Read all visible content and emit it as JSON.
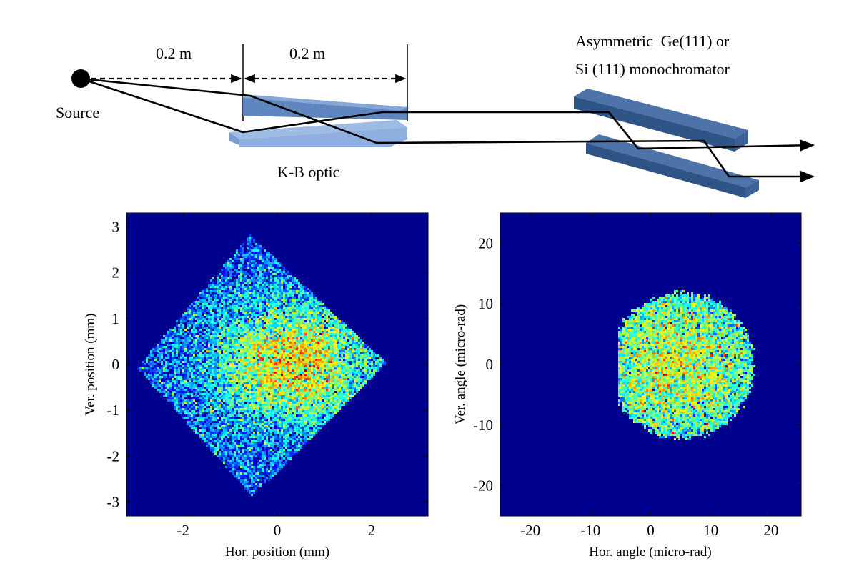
{
  "colors": {
    "background_dark_blue": "#00008f",
    "slab_top": "#6f95c9",
    "slab_front": "#a8c2e8",
    "mono_top": "#4a6fa3",
    "mono_front": "#2c4e7c",
    "beam": "#000000"
  },
  "diagram": {
    "source_label": "Source",
    "dist1_label": "0.2 m",
    "dist2_label": "0.2 m",
    "kb_label": "K-B optic",
    "mono_label_line1": "Asymmetric  Ge(111) or",
    "mono_label_line2": "Si (111) monochromator"
  },
  "plots": [
    {
      "name": "position-plot",
      "xlabel": "Hor. position (mm)",
      "ylabel": "Ver. position (mm)",
      "xlim": [
        -3.2,
        3.2
      ],
      "ylim": [
        -3.3,
        3.3
      ],
      "xticks": [
        "-2",
        "0",
        "2"
      ],
      "yticks": [
        "3",
        "2",
        "1",
        "0",
        "-1",
        "-2",
        "-3"
      ],
      "shape": "diamond",
      "diamond_vertices": [
        [
          -3.0,
          -0.05
        ],
        [
          -0.6,
          2.85
        ],
        [
          2.3,
          0.05
        ],
        [
          -0.55,
          -2.85
        ]
      ],
      "peak_center": [
        0.3,
        0.05
      ],
      "peak_width": [
        1.6,
        1.3
      ]
    },
    {
      "name": "angle-plot",
      "xlabel": "Hor. angle (micro-rad)",
      "ylabel": "Ver. angle (micro-rad)",
      "xlim": [
        -25,
        25
      ],
      "ylim": [
        -25,
        25
      ],
      "xticks": [
        "-20",
        "-10",
        "0",
        "10",
        "20"
      ],
      "yticks": [
        "20",
        "10",
        "0",
        "-10",
        "-20"
      ],
      "shape": "disc",
      "disc_center": [
        5,
        0
      ],
      "disc_radius": [
        12,
        12
      ],
      "cut_left_x": -5.5,
      "peak_center": [
        4,
        0
      ],
      "peak_width": [
        9,
        9
      ]
    }
  ]
}
